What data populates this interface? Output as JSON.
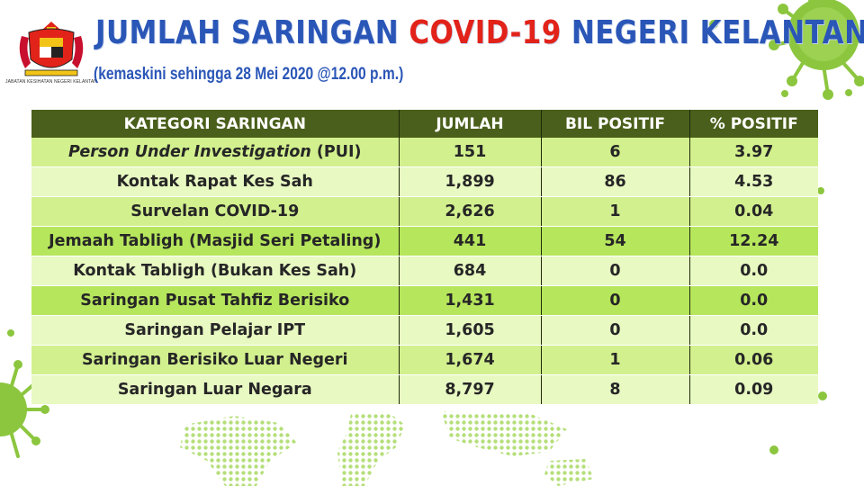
{
  "header": {
    "logo_caption": "JABATAN KESIHATAN NEGERI KELANTAN",
    "title_part1": "JUMLAH SARINGAN ",
    "title_part2": "COVID-19",
    "title_part3": " NEGERI KELANTAN",
    "subtitle": "(kemaskini sehingga 28 Mei 2020 @12.00 p.m.)"
  },
  "colors": {
    "title_blue": "#2a56b7",
    "title_red": "#e2231a",
    "header_row": "#4a5f1b",
    "row_light": "#e8f9c2",
    "row_green": "#d2f08e",
    "virus_green": "#8cc63f"
  },
  "table": {
    "headers": [
      "KATEGORI SARINGAN",
      "JUMLAH",
      "BIL POSITIF",
      "% POSITIF"
    ],
    "rows": [
      {
        "kategori_italic": "Person Under Investigation",
        "kategori": " (PUI)",
        "jumlah": "151",
        "positif": "6",
        "peratus": "3.97"
      },
      {
        "kategori_italic": "",
        "kategori": "Kontak Rapat Kes Sah",
        "jumlah": "1,899",
        "positif": "86",
        "peratus": "4.53"
      },
      {
        "kategori_italic": "",
        "kategori": "Survelan COVID-19",
        "jumlah": "2,626",
        "positif": "1",
        "peratus": "0.04"
      },
      {
        "kategori_italic": "",
        "kategori": "Jemaah Tabligh (Masjid Seri Petaling)",
        "jumlah": "441",
        "positif": "54",
        "peratus": "12.24"
      },
      {
        "kategori_italic": "",
        "kategori": "Kontak Tabligh (Bukan Kes Sah)",
        "jumlah": "684",
        "positif": "0",
        "peratus": "0.0"
      },
      {
        "kategori_italic": "",
        "kategori": "Saringan Pusat Tahfiz Berisiko",
        "jumlah": "1,431",
        "positif": "0",
        "peratus": "0.0"
      },
      {
        "kategori_italic": "",
        "kategori": "Saringan Pelajar IPT",
        "jumlah": "1,605",
        "positif": "0",
        "peratus": "0.0"
      },
      {
        "kategori_italic": "",
        "kategori": "Saringan Berisiko Luar Negeri",
        "jumlah": "1,674",
        "positif": "1",
        "peratus": "0.06"
      },
      {
        "kategori_italic": "",
        "kategori": "Saringan Luar Negara",
        "jumlah": "8,797",
        "positif": "8",
        "peratus": "0.09"
      }
    ]
  }
}
